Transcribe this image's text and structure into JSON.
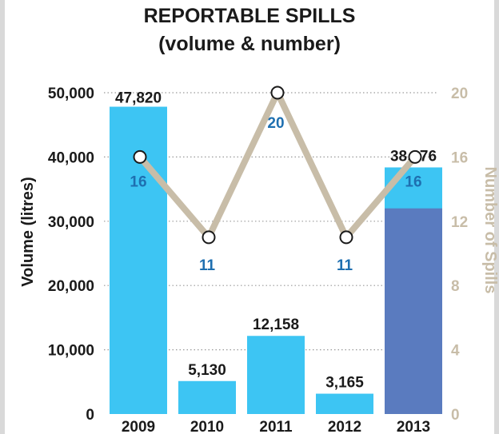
{
  "title_line1": "REPORTABLE SPILLS",
  "title_line2": "(volume & number)",
  "colors": {
    "bar": "#3dc5f3",
    "bar_2013_lower": "#5a7bbf",
    "line": "#c8bda8",
    "count_label": "#1e6fb0",
    "right_axis": "#c8bda8"
  },
  "chart_data": {
    "type": "bar",
    "categories": [
      "2009",
      "2010",
      "2011",
      "2012",
      "2013"
    ],
    "series": [
      {
        "name": "",
        "type": "bar",
        "axis": "left",
        "values": [
          47820,
          5130,
          12158,
          3165,
          38376
        ],
        "value_labels": [
          "47,820",
          "5,130",
          "12,158",
          "3,165",
          "38,376"
        ]
      },
      {
        "name": "",
        "type": "line",
        "axis": "right",
        "values": [
          16,
          11,
          20,
          11,
          16
        ],
        "value_labels": [
          "16",
          "11",
          "20",
          "11",
          "16"
        ]
      }
    ],
    "bar_2013_lower_segment": 32000,
    "ylabel": "Volume (litres)",
    "ylabel_right": "Number of Spills",
    "ylim": [
      0,
      50000
    ],
    "ylim_right": [
      0,
      20
    ],
    "yticks": [
      0,
      10000,
      20000,
      30000,
      40000,
      50000
    ],
    "ytick_labels": [
      "0",
      "10,000",
      "20,000",
      "30,000",
      "40,000",
      "50,000"
    ],
    "yticks_right": [
      0,
      4,
      8,
      12,
      16,
      20
    ],
    "ytick_labels_right": [
      "0",
      "4",
      "8",
      "12",
      "16",
      "20"
    ],
    "grid": "dotted horizontal"
  }
}
